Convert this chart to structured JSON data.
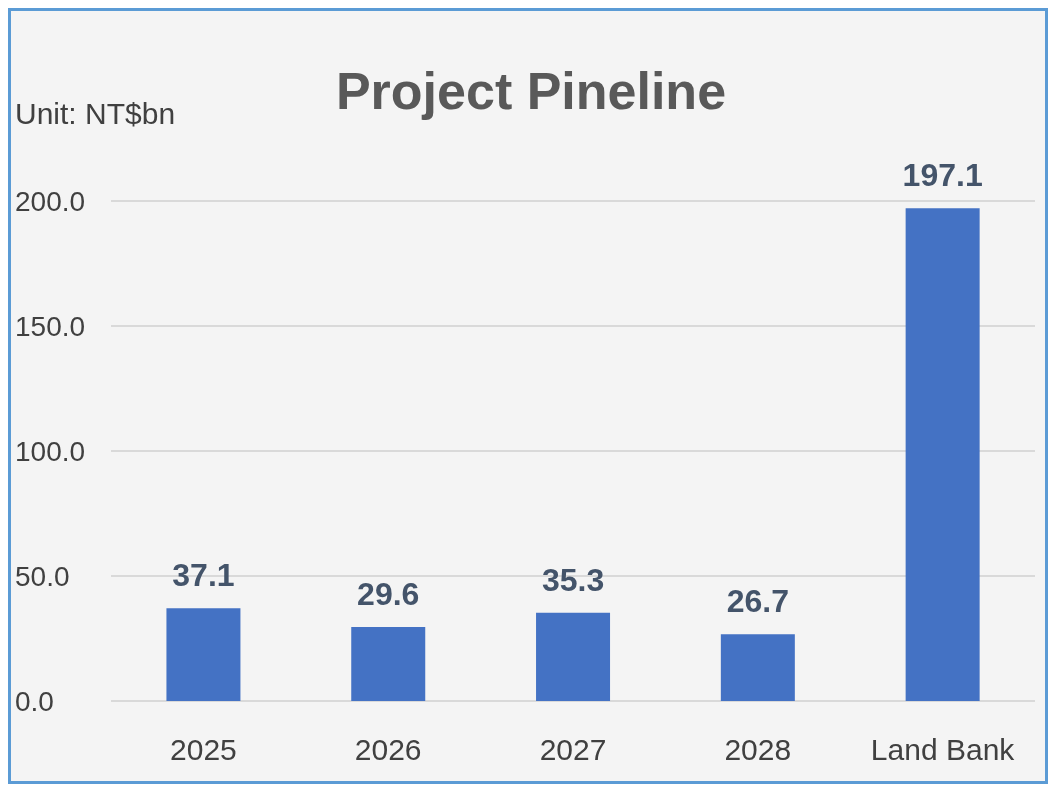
{
  "chart_data": {
    "type": "bar",
    "title": "Project Pineline",
    "ylabel": "Unit: NT$bn",
    "categories": [
      "2025",
      "2026",
      "2027",
      "2028",
      "Land Bank"
    ],
    "values": [
      37.1,
      29.6,
      35.3,
      26.7,
      197.1
    ],
    "color": "#4472c4",
    "ylim": [
      0,
      200
    ],
    "yticks": [
      {
        "value": 0,
        "label": "0.0"
      },
      {
        "value": 50,
        "label": "50.0"
      },
      {
        "value": 100,
        "label": "100.0"
      },
      {
        "value": 150,
        "label": "150.0"
      },
      {
        "value": 200,
        "label": "200.0"
      }
    ],
    "grid": "y",
    "data_labels": true
  }
}
